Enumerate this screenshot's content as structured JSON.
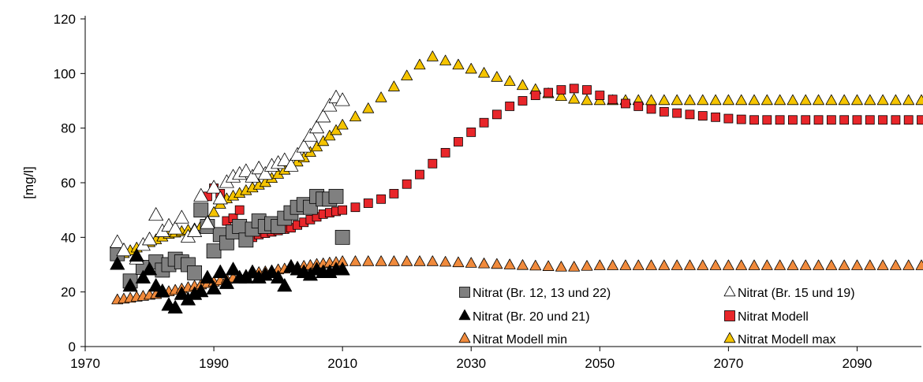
{
  "chart_data": {
    "type": "scatter",
    "title": "",
    "xlabel": "",
    "ylabel": "[mg/l]",
    "xlim": [
      1970,
      2100
    ],
    "ylim": [
      0,
      120
    ],
    "xticks": [
      1970,
      1990,
      2010,
      2030,
      2050,
      2070,
      2090
    ],
    "yticks": [
      0,
      20,
      40,
      60,
      80,
      100,
      120
    ],
    "grid": false,
    "legend_position": "bottom-right",
    "series": [
      {
        "name": "Nitrat Modell min",
        "marker": "triangle",
        "color": "#f08a3c",
        "stroke": "#000000",
        "x": [
          1975,
          1976,
          1977,
          1978,
          1979,
          1980,
          1981,
          1982,
          1983,
          1984,
          1985,
          1986,
          1987,
          1988,
          1989,
          1990,
          1991,
          1992,
          1993,
          1994,
          1995,
          1996,
          1997,
          1998,
          1999,
          2000,
          2001,
          2002,
          2003,
          2004,
          2005,
          2006,
          2007,
          2008,
          2009,
          2010,
          2012,
          2014,
          2016,
          2018,
          2020,
          2022,
          2024,
          2026,
          2028,
          2030,
          2032,
          2034,
          2036,
          2038,
          2040,
          2042,
          2044,
          2046,
          2048,
          2050,
          2052,
          2054,
          2056,
          2058,
          2060,
          2062,
          2064,
          2066,
          2068,
          2070,
          2072,
          2074,
          2076,
          2078,
          2080,
          2082,
          2084,
          2086,
          2088,
          2090,
          2092,
          2094,
          2096,
          2098,
          2100
        ],
        "y": [
          17,
          17.3,
          17.6,
          18,
          18.3,
          18.7,
          19,
          19.5,
          20,
          20.5,
          21,
          21.5,
          22,
          22.5,
          23,
          23.5,
          24,
          24.5,
          25,
          25.5,
          26,
          26.5,
          27,
          27.3,
          27.6,
          28,
          28.3,
          28.6,
          29,
          29.3,
          29.6,
          30,
          30.2,
          30.5,
          30.7,
          31,
          31,
          31,
          31,
          31,
          31,
          31,
          31,
          30.8,
          30.6,
          30.4,
          30.2,
          30,
          29.8,
          29.6,
          29.4,
          29.2,
          29,
          29,
          29.3,
          29.5,
          29.5,
          29.5,
          29.5,
          29.5,
          29.5,
          29.5,
          29.5,
          29.5,
          29.5,
          29.5,
          29.5,
          29.5,
          29.5,
          29.5,
          29.5,
          29.5,
          29.5,
          29.5,
          29.5,
          29.5,
          29.5,
          29.5,
          29.5,
          29.5,
          29.5
        ]
      },
      {
        "name": "Nitrat Modell max",
        "marker": "triangle",
        "color": "#f5c400",
        "stroke": "#000000",
        "x": [
          1975,
          1976,
          1977,
          1978,
          1979,
          1980,
          1981,
          1982,
          1983,
          1984,
          1985,
          1986,
          1987,
          1988,
          1989,
          1990,
          1991,
          1992,
          1993,
          1994,
          1995,
          1996,
          1997,
          1998,
          1999,
          2000,
          2001,
          2002,
          2003,
          2004,
          2005,
          2006,
          2007,
          2008,
          2009,
          2010,
          2012,
          2014,
          2016,
          2018,
          2020,
          2022,
          2024,
          2026,
          2028,
          2030,
          2032,
          2034,
          2036,
          2038,
          2040,
          2042,
          2044,
          2046,
          2048,
          2050,
          2052,
          2054,
          2056,
          2058,
          2060,
          2062,
          2064,
          2066,
          2068,
          2070,
          2072,
          2074,
          2076,
          2078,
          2080,
          2082,
          2084,
          2086,
          2088,
          2090,
          2092,
          2094,
          2096,
          2098,
          2100
        ],
        "y": [
          33,
          34,
          35,
          36,
          37,
          38,
          39,
          40,
          41,
          41.5,
          42,
          42.5,
          43,
          44,
          46,
          49,
          52,
          54,
          55,
          56,
          57,
          58,
          59,
          60,
          61.5,
          63,
          64.5,
          66,
          67.5,
          69,
          71,
          73,
          75,
          77,
          79,
          81,
          84,
          87,
          91,
          95,
          99,
          103,
          106,
          104.5,
          103,
          101.5,
          100,
          98.5,
          97,
          95.5,
          94,
          92.5,
          91.5,
          90.5,
          90,
          90,
          90,
          90,
          90,
          90,
          90,
          90,
          90,
          90,
          90,
          90,
          90,
          90,
          90,
          90,
          90,
          90,
          90,
          90,
          90,
          90,
          90,
          90,
          90,
          90,
          90
        ]
      },
      {
        "name": "Nitrat Modell",
        "marker": "square",
        "color": "#e8262a",
        "stroke": "#000000",
        "x": [
          1989,
          1990,
          1991,
          1992,
          1993,
          1994,
          1995,
          1996,
          1997,
          1998,
          1999,
          2000,
          2001,
          2002,
          2003,
          2004,
          2005,
          2006,
          2007,
          2008,
          2009,
          2010,
          2012,
          2014,
          2016,
          2018,
          2020,
          2022,
          2024,
          2026,
          2028,
          2030,
          2032,
          2034,
          2036,
          2038,
          2040,
          2042,
          2044,
          2046,
          2048,
          2050,
          2052,
          2054,
          2056,
          2058,
          2060,
          2062,
          2064,
          2066,
          2068,
          2070,
          2072,
          2074,
          2076,
          2078,
          2080,
          2082,
          2084,
          2086,
          2088,
          2090,
          2092,
          2094,
          2096,
          2098,
          2100
        ],
        "y": [
          55,
          58,
          56,
          46,
          47,
          50,
          44,
          40,
          41,
          41.5,
          42,
          42.5,
          43,
          43.5,
          44.5,
          45.5,
          46.5,
          47.5,
          48.5,
          49,
          49.5,
          50,
          51,
          52.5,
          54,
          56,
          59.5,
          63,
          67,
          71,
          75,
          78.5,
          82,
          85,
          88,
          90,
          92,
          93,
          94,
          94.5,
          94,
          92,
          90.5,
          89,
          88,
          87,
          86,
          85.5,
          85,
          84.5,
          84,
          83.5,
          83.2,
          83,
          83,
          83,
          83,
          83,
          83,
          83,
          83,
          83,
          83,
          83,
          83,
          83,
          83
        ]
      },
      {
        "name": "Nitrat (Br. 12, 13 und 22)",
        "marker": "square",
        "color": "#808080",
        "stroke": "#000000",
        "x": [
          1975,
          1977,
          1979,
          1981,
          1982,
          1983,
          1984,
          1985,
          1986,
          1987,
          1988,
          1989,
          1990,
          1991,
          1992,
          1993,
          1994,
          1995,
          1996,
          1997,
          1998,
          1999,
          2000,
          2001,
          2002,
          2003,
          2004,
          2005,
          2006,
          2007,
          2008,
          2009,
          2010
        ],
        "y": [
          34,
          24,
          29,
          31,
          28,
          30,
          32,
          31,
          30,
          27,
          50,
          44,
          35,
          41,
          38,
          42,
          44,
          39,
          43,
          46,
          44,
          45,
          44,
          47,
          49,
          51,
          52,
          51,
          55,
          54,
          54,
          55,
          40
        ]
      },
      {
        "name": "Nitrat (Br. 15 und 19)",
        "marker": "triangle",
        "color": "#ffffff",
        "stroke": "#000000",
        "x": [
          1975,
          1976,
          1978,
          1979,
          1980,
          1981,
          1982,
          1983,
          1984,
          1985,
          1986,
          1987,
          1988,
          1989,
          1990,
          1991,
          1992,
          1993,
          1994,
          1995,
          1996,
          1997,
          1998,
          1999,
          2000,
          2001,
          2002,
          2003,
          2004,
          2005,
          2006,
          2007,
          2008,
          2009,
          2010
        ],
        "y": [
          38,
          35,
          32,
          37,
          39,
          48,
          42,
          44,
          43,
          47,
          40,
          42,
          55,
          45,
          58,
          54,
          60,
          62,
          63,
          64,
          62,
          65,
          63,
          66,
          67,
          68,
          66,
          70,
          73,
          77,
          80,
          84,
          88,
          91,
          90
        ]
      },
      {
        "name": "Nitrat (Br. 20 und 21)",
        "marker": "triangle",
        "color": "#000000",
        "stroke": "#000000",
        "x": [
          1975,
          1977,
          1978,
          1979,
          1980,
          1981,
          1982,
          1983,
          1984,
          1985,
          1986,
          1987,
          1988,
          1989,
          1990,
          1991,
          1992,
          1993,
          1994,
          1995,
          1996,
          1997,
          1998,
          1999,
          2000,
          2001,
          2002,
          2003,
          2004,
          2005,
          2006,
          2007,
          2008,
          2009,
          2010
        ],
        "y": [
          30,
          22,
          33,
          25,
          28,
          22,
          20,
          15,
          14,
          19,
          17,
          19,
          20,
          25,
          21,
          27,
          23,
          28,
          25,
          25,
          27,
          25,
          26,
          27,
          25,
          22,
          29,
          28,
          27,
          26,
          28,
          27,
          27,
          28,
          28
        ]
      }
    ],
    "legend": [
      {
        "series": "Nitrat (Br. 12, 13 und 22)",
        "label": "Nitrat (Br. 12, 13 und 22)"
      },
      {
        "series": "Nitrat (Br. 15 und 19)",
        "label": "Nitrat (Br. 15 und 19)"
      },
      {
        "series": "Nitrat (Br. 20 und 21)",
        "label": "Nitrat (Br. 20 und 21)"
      },
      {
        "series": "Nitrat Modell",
        "label": "Nitrat Modell"
      },
      {
        "series": "Nitrat Modell min",
        "label": "Nitrat Modell min"
      },
      {
        "series": "Nitrat Modell max",
        "label": "Nitrat Modell max"
      }
    ]
  }
}
